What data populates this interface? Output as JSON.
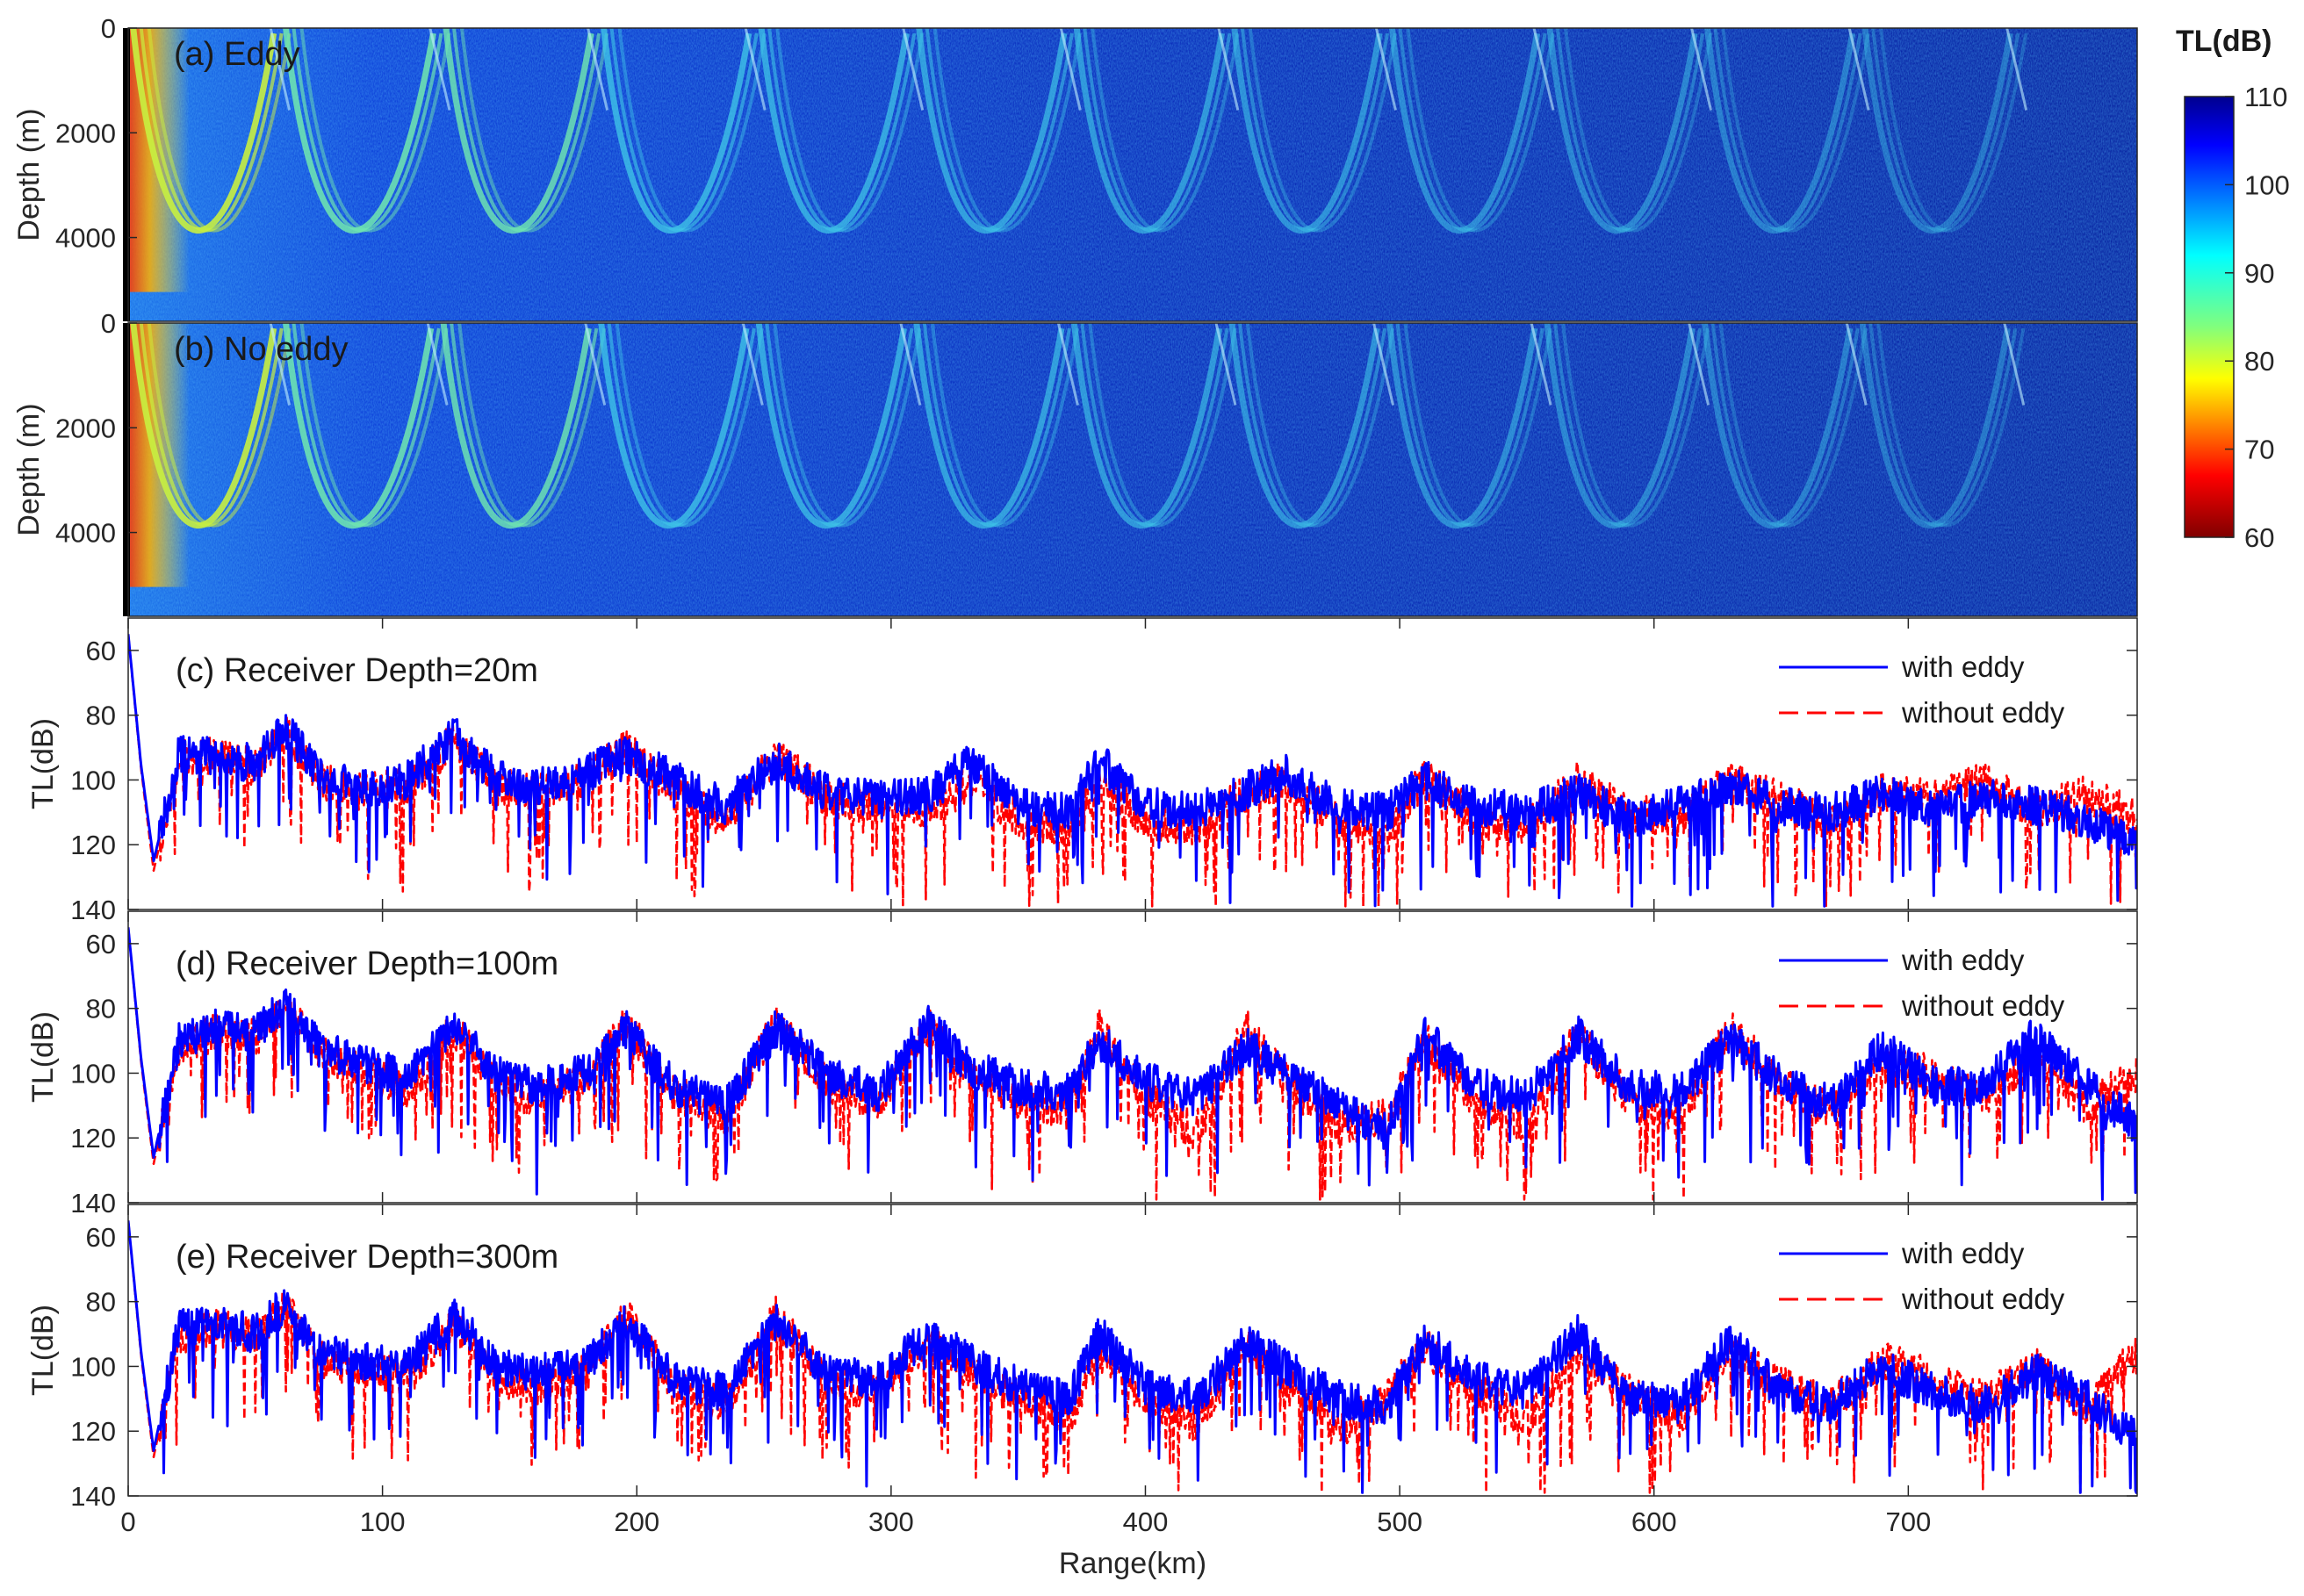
{
  "chart_data": [
    {
      "type": "heatmap",
      "label": "(a) Eddy",
      "ylabel": "Depth (m)",
      "yticks": [
        0,
        2000,
        4000
      ],
      "ylim": [
        0,
        5600
      ],
      "xlim": [
        0,
        790
      ],
      "max_depth_m": 5400,
      "convergence_zones_km": [
        2,
        62,
        125,
        187,
        249,
        311,
        373,
        435,
        497,
        559,
        621,
        683,
        745
      ],
      "colormap": "jet"
    },
    {
      "type": "heatmap",
      "label": "(b) No eddy",
      "ylabel": "Depth (m)",
      "yticks": [
        0,
        2000,
        4000
      ],
      "ylim": [
        0,
        5600
      ],
      "xlim": [
        0,
        790
      ],
      "max_depth_m": 5400,
      "convergence_zones_km": [
        2,
        62,
        124,
        186,
        248,
        310,
        372,
        434,
        496,
        558,
        620,
        682,
        744
      ],
      "colormap": "jet"
    },
    {
      "type": "line",
      "label": "(c) Receiver Depth=20m",
      "ylabel": "TL(dB)",
      "ylim": [
        140,
        50
      ],
      "yticks": [
        60,
        80,
        100,
        120,
        140
      ],
      "xlim": [
        0,
        790
      ],
      "series": [
        {
          "name": "with eddy",
          "color": "#0000ff",
          "dash": "solid",
          "x": [
            0,
            5,
            10,
            20,
            35,
            50,
            62,
            75,
            90,
            110,
            128,
            145,
            160,
            180,
            195,
            215,
            235,
            255,
            275,
            295,
            315,
            330,
            350,
            370,
            382,
            400,
            420,
            440,
            455,
            475,
            495,
            510,
            530,
            550,
            570,
            590,
            610,
            630,
            650,
            670,
            690,
            710,
            730,
            750,
            770,
            790
          ],
          "y": [
            55,
            95,
            125,
            92,
            93,
            95,
            84,
            98,
            103,
            100,
            86,
            100,
            102,
            98,
            92,
            100,
            108,
            94,
            104,
            106,
            105,
            94,
            108,
            110,
            94,
            108,
            110,
            103,
            98,
            108,
            110,
            100,
            108,
            110,
            104,
            112,
            108,
            102,
            108,
            110,
            104,
            110,
            105,
            108,
            112,
            120
          ]
        },
        {
          "name": "without eddy",
          "color": "#ff0000",
          "dash": "dashed",
          "x": [
            0,
            5,
            10,
            20,
            35,
            50,
            62,
            75,
            90,
            110,
            128,
            145,
            160,
            180,
            195,
            215,
            235,
            255,
            275,
            295,
            315,
            330,
            350,
            370,
            382,
            400,
            420,
            440,
            455,
            475,
            495,
            510,
            530,
            550,
            570,
            590,
            610,
            630,
            650,
            670,
            690,
            710,
            730,
            750,
            770,
            790
          ],
          "y": [
            55,
            96,
            128,
            94,
            92,
            96,
            85,
            100,
            104,
            102,
            88,
            102,
            104,
            100,
            90,
            104,
            112,
            92,
            106,
            108,
            110,
            100,
            112,
            115,
            100,
            112,
            115,
            104,
            100,
            112,
            118,
            98,
            112,
            114,
            100,
            110,
            112,
            100,
            106,
            114,
            104,
            106,
            100,
            110,
            104,
            112
          ]
        }
      ]
    },
    {
      "type": "line",
      "label": "(d) Receiver Depth=100m",
      "ylabel": "TL(dB)",
      "ylim": [
        140,
        50
      ],
      "yticks": [
        60,
        80,
        100,
        120,
        140
      ],
      "xlim": [
        0,
        790
      ],
      "series": [
        {
          "name": "with eddy",
          "color": "#0000ff",
          "dash": "solid",
          "x": [
            0,
            5,
            10,
            20,
            35,
            50,
            62,
            75,
            90,
            110,
            128,
            145,
            160,
            180,
            195,
            215,
            235,
            255,
            275,
            295,
            315,
            330,
            350,
            370,
            382,
            400,
            420,
            440,
            455,
            475,
            495,
            510,
            530,
            550,
            570,
            590,
            610,
            630,
            650,
            670,
            690,
            710,
            730,
            750,
            770,
            790
          ],
          "y": [
            55,
            95,
            126,
            90,
            86,
            88,
            78,
            92,
            96,
            102,
            85,
            100,
            104,
            100,
            86,
            104,
            110,
            86,
            100,
            106,
            84,
            98,
            104,
            106,
            90,
            102,
            108,
            92,
            100,
            110,
            118,
            88,
            104,
            108,
            88,
            104,
            106,
            90,
            102,
            110,
            92,
            104,
            104,
            88,
            104,
            116
          ]
        },
        {
          "name": "without eddy",
          "color": "#ff0000",
          "dash": "dashed",
          "x": [
            0,
            5,
            10,
            20,
            35,
            50,
            62,
            75,
            90,
            110,
            128,
            145,
            160,
            180,
            195,
            215,
            235,
            255,
            275,
            295,
            315,
            330,
            350,
            370,
            382,
            400,
            420,
            440,
            455,
            475,
            495,
            510,
            530,
            550,
            570,
            590,
            610,
            630,
            650,
            670,
            690,
            710,
            730,
            750,
            770,
            790
          ],
          "y": [
            55,
            96,
            128,
            92,
            87,
            89,
            80,
            94,
            98,
            106,
            86,
            104,
            108,
            102,
            84,
            106,
            114,
            84,
            104,
            110,
            86,
            100,
            108,
            112,
            86,
            108,
            118,
            86,
            102,
            116,
            114,
            90,
            110,
            116,
            88,
            108,
            114,
            86,
            104,
            112,
            98,
            100,
            108,
            94,
            110,
            100
          ]
        }
      ]
    },
    {
      "type": "line",
      "label": "(e) Receiver Depth=300m",
      "ylabel": "TL(dB)",
      "ylim": [
        140,
        50
      ],
      "yticks": [
        60,
        80,
        100,
        120,
        140
      ],
      "xlim": [
        0,
        790
      ],
      "xlabel": "Range(km)",
      "xticks": [
        0,
        100,
        200,
        300,
        400,
        500,
        600,
        700
      ],
      "series": [
        {
          "name": "with eddy",
          "color": "#0000ff",
          "dash": "solid",
          "x": [
            0,
            5,
            10,
            20,
            35,
            50,
            62,
            75,
            90,
            110,
            128,
            145,
            160,
            180,
            195,
            215,
            235,
            255,
            275,
            295,
            315,
            330,
            350,
            370,
            382,
            400,
            420,
            440,
            455,
            475,
            495,
            510,
            530,
            550,
            570,
            590,
            610,
            630,
            650,
            670,
            690,
            710,
            730,
            750,
            770,
            790
          ],
          "y": [
            55,
            95,
            126,
            88,
            87,
            90,
            80,
            96,
            98,
            100,
            84,
            100,
            102,
            100,
            86,
            104,
            108,
            86,
            102,
            104,
            90,
            98,
            106,
            110,
            90,
            106,
            110,
            92,
            100,
            110,
            112,
            92,
            104,
            108,
            90,
            110,
            112,
            92,
            108,
            112,
            100,
            108,
            112,
            102,
            110,
            122
          ]
        },
        {
          "name": "without eddy",
          "color": "#ff0000",
          "dash": "dashed",
          "x": [
            0,
            5,
            10,
            20,
            35,
            50,
            62,
            75,
            90,
            110,
            128,
            145,
            160,
            180,
            195,
            215,
            235,
            255,
            275,
            295,
            315,
            330,
            350,
            370,
            382,
            400,
            420,
            440,
            455,
            475,
            495,
            510,
            530,
            550,
            570,
            590,
            610,
            630,
            650,
            670,
            690,
            710,
            730,
            750,
            770,
            790
          ],
          "y": [
            55,
            96,
            128,
            90,
            88,
            91,
            82,
            98,
            100,
            104,
            86,
            104,
            106,
            102,
            84,
            106,
            112,
            84,
            106,
            108,
            92,
            100,
            110,
            116,
            96,
            110,
            118,
            94,
            104,
            120,
            110,
            94,
            108,
            116,
            96,
            108,
            116,
            96,
            106,
            112,
            98,
            104,
            110,
            100,
            112,
            96
          ]
        }
      ]
    }
  ],
  "colorbar": {
    "title": "TL(dB)",
    "ticks": [
      110,
      100,
      90,
      80,
      70,
      60
    ],
    "range": [
      60,
      110
    ],
    "colormap": "jet"
  },
  "legend": {
    "with_eddy": "with eddy",
    "without_eddy": "without eddy"
  }
}
